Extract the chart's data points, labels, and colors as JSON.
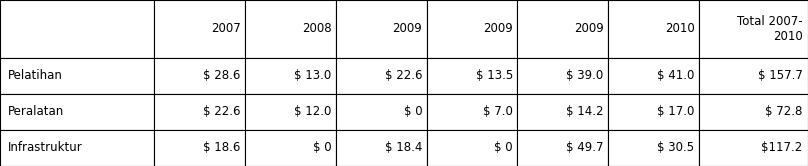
{
  "col_headers": [
    "",
    "2007",
    "2008",
    "2009",
    "2009",
    "2009",
    "2010",
    "Total 2007-\n2010"
  ],
  "rows": [
    [
      "Pelatihan",
      "$ 28.6",
      "$ 13.0",
      "$ 22.6",
      "$ 13.5",
      "$ 39.0",
      "$ 41.0",
      "$ 157.7"
    ],
    [
      "Peralatan",
      "$ 22.6",
      "$ 12.0",
      "$ 0",
      "$ 7.0",
      "$ 14.2",
      "$ 17.0",
      "$ 72.8"
    ],
    [
      "Infrastruktur",
      "$ 18.6",
      "$ 0",
      "$ 18.4",
      "$ 0",
      "$ 49.7",
      "$ 30.5",
      "$117.2"
    ]
  ],
  "col_widths": [
    1.7,
    1.0,
    1.0,
    1.0,
    1.0,
    1.0,
    1.0,
    1.2
  ],
  "background_color": "#ffffff",
  "border_color": "#000000",
  "font_size": 8.5,
  "header_font_size": 8.5,
  "figsize": [
    8.08,
    1.66
  ],
  "dpi": 100
}
